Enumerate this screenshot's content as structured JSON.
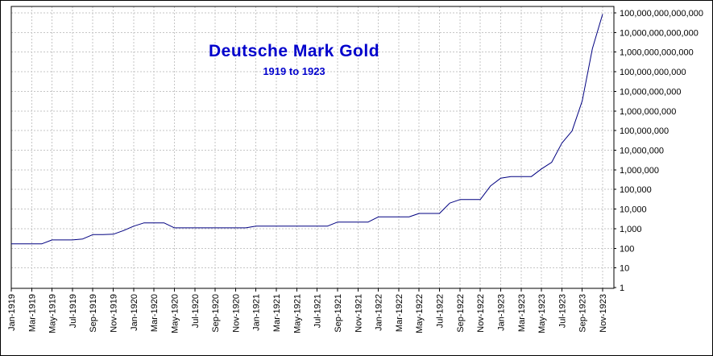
{
  "chart_data": {
    "type": "line",
    "title": "Deutsche Mark Gold",
    "subtitle": "1919 to 1923",
    "y_scale": "log",
    "ylim": [
      1,
      100000000000000
    ],
    "grid": "dashed",
    "legend": "none",
    "line_color": "#000080",
    "title_color": "#0000cc",
    "grid_color": "#c6c6c6",
    "axis_color": "#000000",
    "x_tick_step": 2,
    "x": [
      "Jan-1919",
      "Feb-1919",
      "Mar-1919",
      "Apr-1919",
      "May-1919",
      "Jun-1919",
      "Jul-1919",
      "Aug-1919",
      "Sep-1919",
      "Oct-1919",
      "Nov-1919",
      "Dec-1919",
      "Jan-1920",
      "Feb-1920",
      "Mar-1920",
      "Apr-1920",
      "May-1920",
      "Jun-1920",
      "Jul-1920",
      "Aug-1920",
      "Sep-1920",
      "Oct-1920",
      "Nov-1920",
      "Dec-1920",
      "Jan-1921",
      "Feb-1921",
      "Mar-1921",
      "Apr-1921",
      "May-1921",
      "Jun-1921",
      "Jul-1921",
      "Aug-1921",
      "Sep-1921",
      "Oct-1921",
      "Nov-1921",
      "Dec-1921",
      "Jan-1922",
      "Feb-1922",
      "Mar-1922",
      "Apr-1922",
      "May-1922",
      "Jun-1922",
      "Jul-1922",
      "Aug-1922",
      "Sep-1922",
      "Oct-1922",
      "Nov-1922",
      "Dec-1922",
      "Jan-1923",
      "Feb-1923",
      "Mar-1923",
      "Apr-1923",
      "May-1923",
      "Jun-1923",
      "Jul-1923",
      "Aug-1923",
      "Sep-1923",
      "Oct-1923",
      "Nov-1923"
    ],
    "values": [
      170,
      170,
      170,
      170,
      267,
      267,
      267,
      300,
      499,
      499,
      520,
      800,
      1340,
      1968,
      1968,
      1968,
      1100,
      1100,
      1100,
      1100,
      1100,
      1100,
      1100,
      1100,
      1349,
      1349,
      1349,
      1349,
      1349,
      1349,
      1349,
      1349,
      2175,
      2175,
      2175,
      2175,
      3976,
      3976,
      3976,
      3976,
      6012,
      6012,
      6012,
      20000,
      30381,
      30381,
      30381,
      150000,
      372477,
      450000,
      450000,
      450000,
      1120000,
      2400000,
      23000000,
      95000000,
      3300000000,
      1500000000000,
      87000000000000
    ],
    "x_tick_labels": [
      "Jan-1919",
      "Mar-1919",
      "May-1919",
      "Jul-1919",
      "Sep-1919",
      "Nov-1919",
      "Jan-1920",
      "Mar-1920",
      "May-1920",
      "Jul-1920",
      "Sep-1920",
      "Nov-1920",
      "Jan-1921",
      "Mar-1921",
      "May-1921",
      "Jul-1921",
      "Sep-1921",
      "Nov-1921",
      "Jan-1922",
      "Mar-1922",
      "May-1922",
      "Jul-1922",
      "Sep-1922",
      "Nov-1922",
      "Jan-1923",
      "Mar-1923",
      "May-1923",
      "Jul-1923",
      "Sep-1923",
      "Nov-1923"
    ],
    "y_ticks": [
      1,
      10,
      100,
      1000,
      10000,
      100000,
      1000000,
      10000000,
      100000000,
      1000000000,
      10000000000,
      100000000000,
      1000000000000,
      10000000000000,
      100000000000000
    ],
    "y_tick_labels": [
      "1",
      "10",
      "100",
      "1,000",
      "10,000",
      "100,000",
      "1,000,000",
      "10,000,000",
      "100,000,000",
      "1,000,000,000",
      "10,000,000,000",
      "100,000,000,000",
      "1,000,000,000,000",
      "10,000,000,000,000",
      "100,000,000,000,000"
    ]
  }
}
